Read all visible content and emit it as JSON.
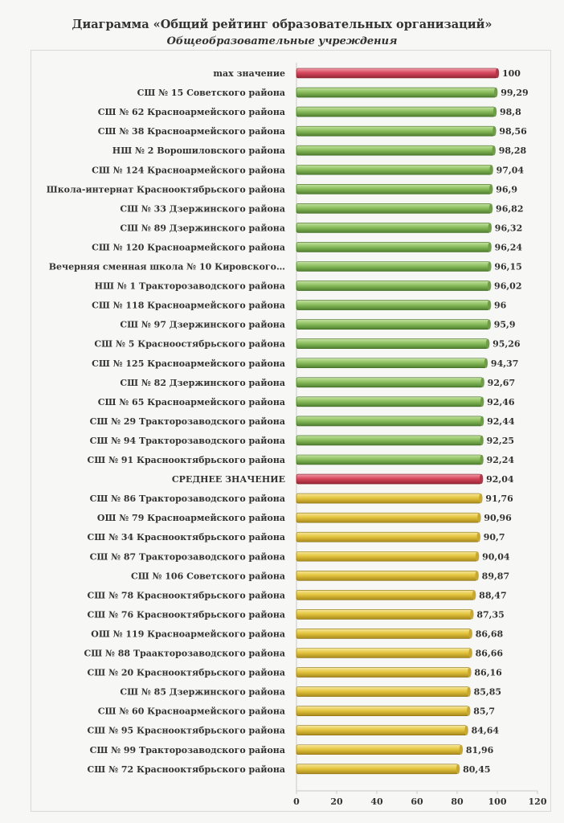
{
  "chart_data": {
    "type": "bar",
    "orientation": "horizontal",
    "title": "Диаграмма «Общий рейтинг образовательных организаций»",
    "subtitle": "Общеобразовательные учреждения",
    "xlim": [
      0,
      120
    ],
    "xticks": [
      0,
      20,
      40,
      60,
      80,
      100,
      120
    ],
    "grid": false,
    "colors": {
      "max": "#d2455a",
      "average": "#d2455a",
      "above": "#86b85a",
      "below": "#e2c33c"
    },
    "categories": [
      "max значение",
      "СШ № 15 Советского района",
      "СШ № 62 Красноармейского района",
      "СШ № 38 Красноармейского района",
      "НШ № 2 Ворошиловского  района",
      "СШ № 124 Красноармейского района",
      "Школа-интернат Краснооктябрьского района",
      "СШ № 33 Дзержинского района",
      "СШ № 89 Дзержинского района",
      "СШ № 120 Красноармейского района",
      "Вечерняя сменная школа № 10 Кировского…",
      "НШ № 1 Тракторозаводского района",
      "СШ № 118 Красноармейского района",
      "СШ № 97 Дзержинского района",
      "СШ № 5 Красноостябрьского района",
      "СШ № 125 Красноармейского района",
      "СШ № 82 Дзержинского района",
      "СШ № 65 Красноармейского района",
      "СШ № 29 Тракторозаводского района",
      "СШ № 94 Тракторозаводского района",
      "СШ № 91 Краснооктябрьского района",
      "СРЕДНЕЕ ЗНАЧЕНИЕ",
      "СШ № 86 Тракторозаводского района",
      "ОШ № 79 Красноармейского района",
      "СШ № 34 Краснооктябрьского района",
      "СШ № 87 Тракторозаводского района",
      "СШ № 106 Советского района",
      "СШ № 78 Краснооктябрьского района",
      "СШ № 76 Краснооктябрьского района",
      "ОШ № 119 Красноармейского района",
      "СШ № 88 Траакторозаводского района",
      "СШ № 20 Краснооктябрьского района",
      "СШ № 85 Дзержинского района",
      "СШ № 60 Красноармейского района",
      "СШ № 95 Краснооктябрьского района",
      "СШ № 99 Тракторозаводского района",
      "СШ № 72 Краснооктябрьского района"
    ],
    "values": [
      100,
      99.29,
      98.8,
      98.56,
      98.28,
      97.04,
      96.9,
      96.82,
      96.32,
      96.24,
      96.15,
      96.02,
      96,
      95.9,
      95.26,
      94.37,
      92.67,
      92.46,
      92.44,
      92.25,
      92.24,
      92.04,
      91.76,
      90.96,
      90.7,
      90.04,
      89.87,
      88.47,
      87.35,
      86.68,
      86.66,
      86.16,
      85.85,
      85.7,
      84.64,
      81.96,
      80.45
    ],
    "value_labels": [
      "100",
      "99,29",
      "98,8",
      "98,56",
      "98,28",
      "97,04",
      "96,9",
      "96,82",
      "96,32",
      "96,24",
      "96,15",
      "96,02",
      "96",
      "95,9",
      "95,26",
      "94,37",
      "92,67",
      "92,46",
      "92,44",
      "92,25",
      "92,24",
      "92,04",
      "91,76",
      "90,96",
      "90,7",
      "90,04",
      "89,87",
      "88,47",
      "87,35",
      "86,68",
      "86,66",
      "86,16",
      "85,85",
      "85,7",
      "84,64",
      "81,96",
      "80,45"
    ],
    "groups": [
      "max",
      "above",
      "above",
      "above",
      "above",
      "above",
      "above",
      "above",
      "above",
      "above",
      "above",
      "above",
      "above",
      "above",
      "above",
      "above",
      "above",
      "above",
      "above",
      "above",
      "above",
      "average",
      "below",
      "below",
      "below",
      "below",
      "below",
      "below",
      "below",
      "below",
      "below",
      "below",
      "below",
      "below",
      "below",
      "below",
      "below"
    ]
  }
}
